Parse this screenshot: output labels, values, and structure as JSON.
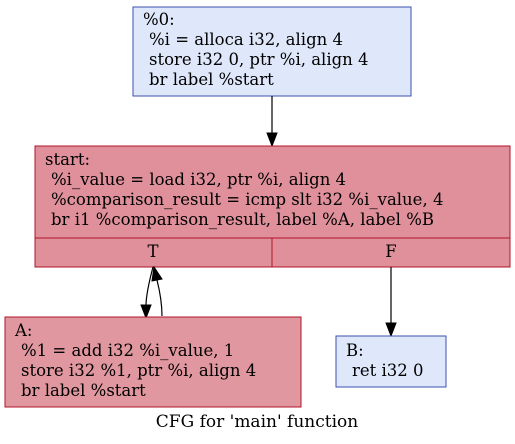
{
  "graph": {
    "caption": "CFG for 'main' function",
    "colors": {
      "entry_fill": "#dfe8fb",
      "entry_stroke": "#3e51b2",
      "hot_fill": "#df909b",
      "hot_stroke": "#b0142a",
      "warm_fill": "#e0979f"
    },
    "nodes": {
      "entry": {
        "lines": [
          "%0:",
          "%i = alloca i32, align 4",
          "store i32 0, ptr %i, align 4",
          "br label %start"
        ]
      },
      "start": {
        "lines": [
          "start:",
          "%i_value = load i32, ptr %i, align 4",
          "%comparison_result = icmp slt i32 %i_value, 4",
          "br i1 %comparison_result, label %A, label %B"
        ],
        "ports": [
          "T",
          "F"
        ]
      },
      "A": {
        "lines": [
          "A:",
          "%1 = add i32 %i_value, 1",
          "store i32 %1, ptr %i, align 4",
          "br label %start"
        ]
      },
      "B": {
        "lines": [
          "B:",
          "ret i32 0"
        ]
      }
    },
    "edges": [
      {
        "from": "%0",
        "to": "start"
      },
      {
        "from": "start:T",
        "to": "A"
      },
      {
        "from": "A",
        "to": "start:T"
      },
      {
        "from": "start:F",
        "to": "B"
      }
    ]
  }
}
